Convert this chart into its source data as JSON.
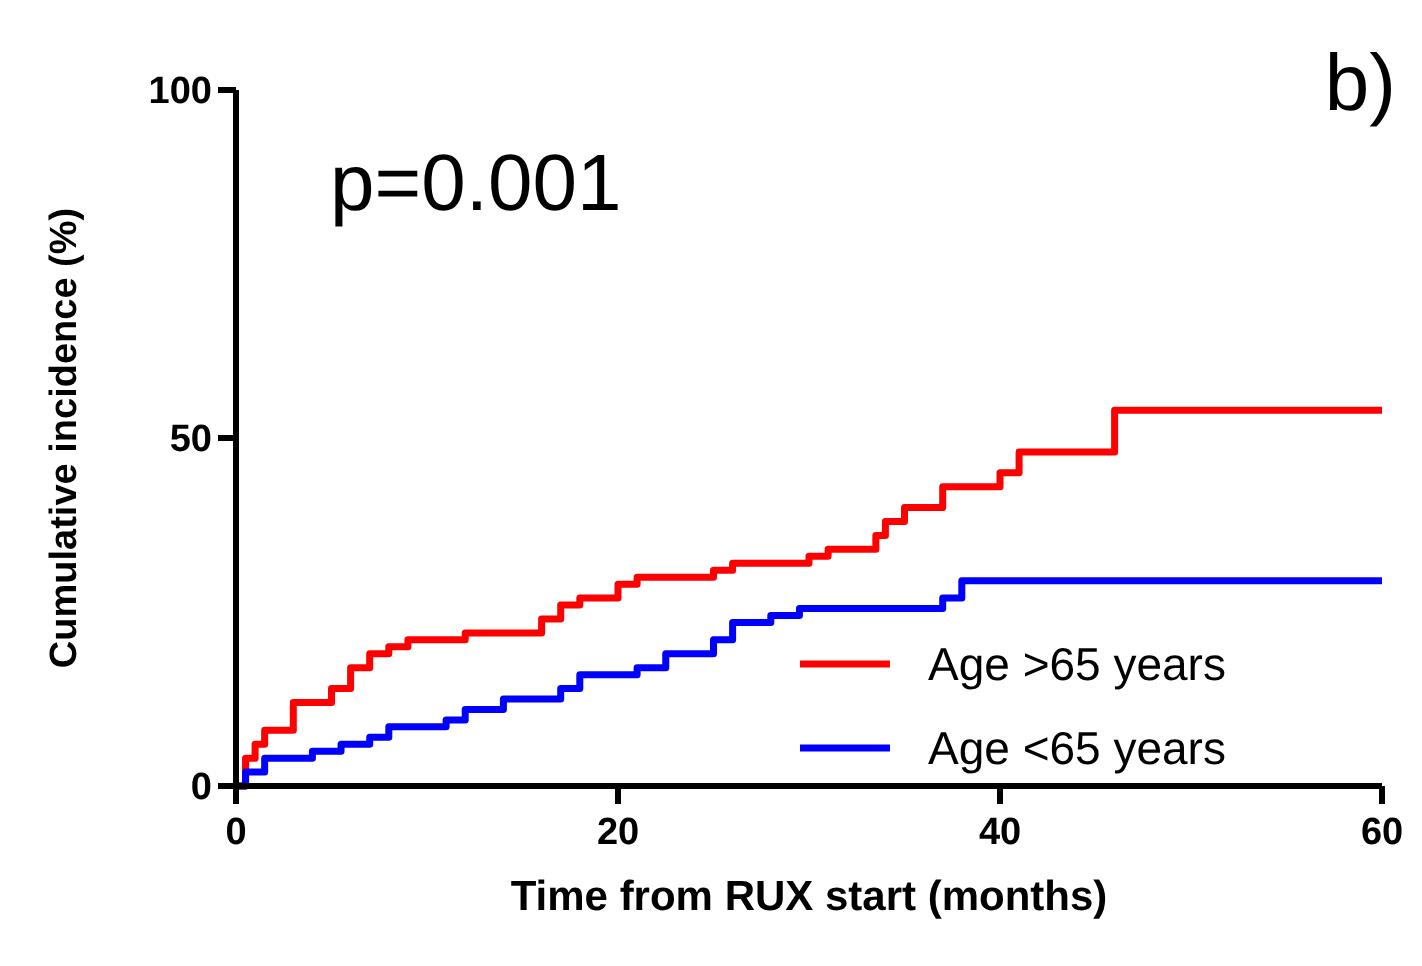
{
  "chart_data": {
    "type": "step",
    "xlabel": "Time from RUX start (months)",
    "ylabel": "Cumulative incidence (%)",
    "annotations": [
      "p=0.001",
      "b)"
    ],
    "xlim": [
      0,
      60
    ],
    "xticks": [
      0,
      20,
      40,
      60
    ],
    "ylim": [
      0,
      100
    ],
    "yticks": [
      0,
      50,
      100
    ],
    "grid": false,
    "legend": "bottom right",
    "series": [
      {
        "name": "Age >65 years",
        "color": "#ff0000",
        "x": [
          0,
          0.5,
          1,
          1.5,
          3,
          5,
          6,
          7,
          8,
          9,
          12,
          16,
          17,
          18,
          20,
          21,
          25,
          26,
          30,
          31,
          33.5,
          34,
          35,
          37,
          40,
          41,
          46,
          60
        ],
        "values": [
          0,
          4,
          6,
          8,
          12,
          14,
          17,
          19,
          20,
          21,
          22,
          24,
          26,
          27,
          29,
          30,
          31,
          32,
          33,
          34,
          36,
          38,
          40,
          43,
          45,
          48,
          54,
          54
        ]
      },
      {
        "name": "Age <65 years",
        "color": "#0000ff",
        "x": [
          0,
          0.5,
          1.5,
          4,
          5.5,
          7,
          8,
          11,
          12,
          14,
          17,
          18,
          21,
          22.5,
          25,
          26,
          28,
          29.5,
          37,
          38,
          60
        ],
        "values": [
          0,
          2,
          4,
          5,
          6,
          7,
          8.5,
          9.5,
          11,
          12.5,
          14,
          16,
          17,
          19,
          21,
          23.5,
          24.5,
          25.5,
          27,
          29.5,
          29.5
        ]
      }
    ]
  }
}
